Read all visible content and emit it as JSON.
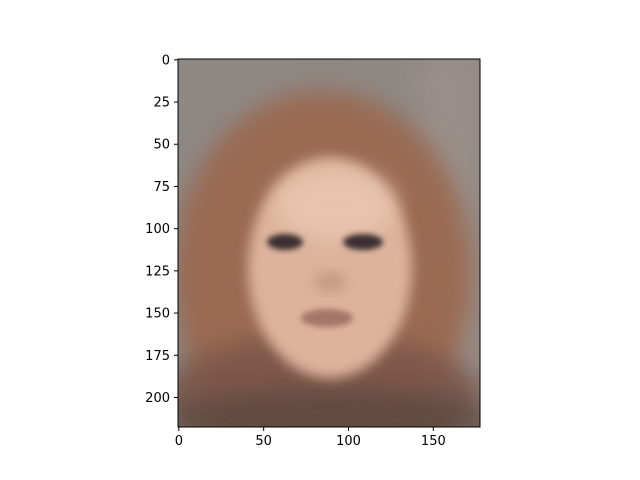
{
  "chart_data": {
    "type": "heatmap",
    "title": "",
    "xlabel": "",
    "ylabel": "",
    "xlim": [
      -0.5,
      177.5
    ],
    "ylim": [
      217.5,
      -0.5
    ],
    "x_ticks": [
      0,
      50,
      100,
      150
    ],
    "y_ticks": [
      0,
      25,
      50,
      75,
      100,
      125,
      150,
      175,
      200
    ],
    "grid": false,
    "image": {
      "description_type": "blurred-average-face",
      "colors": {
        "background": "#8e8884",
        "hair": "#9a6a52",
        "skin": "#dcb39c",
        "skin_highlight": "#ebc9b3",
        "eyes": "#3b2f30",
        "lips": "#9b6a5e",
        "lower_dark": "#5b463e"
      }
    }
  }
}
